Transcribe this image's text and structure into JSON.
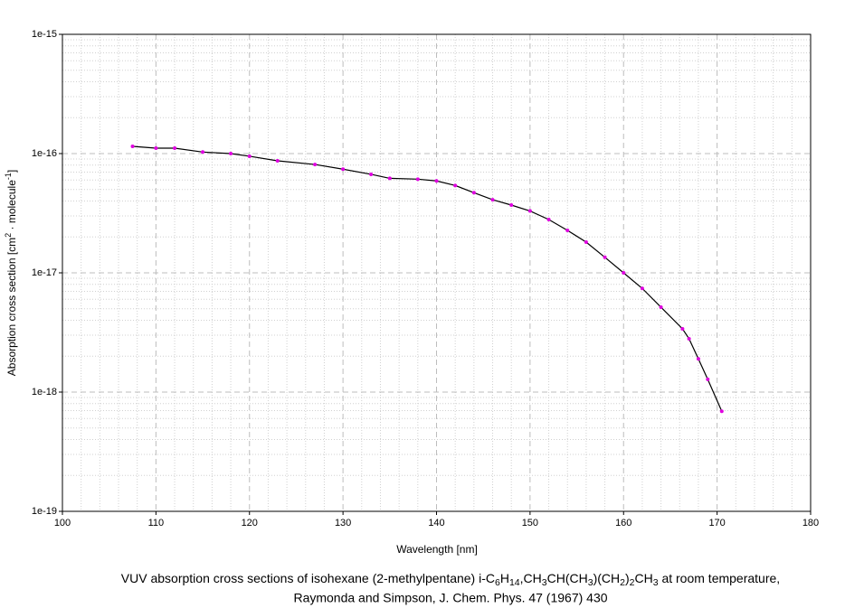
{
  "chart_data": {
    "type": "line",
    "caption": [
      "VUV absorption cross sections of isohexane (2-methylpentane) i-C6H14,CH3CH(CH3)(CH2)2CH3 at room temperature,",
      "Raymonda and Simpson, J. Chem. Phys. 47 (1967) 430"
    ],
    "xlabel": "Wavelength [nm]",
    "ylabel": "Absorption cross section [cm2 · molecule-1]",
    "x": [
      107.5,
      110,
      112,
      115,
      118,
      120,
      123,
      127,
      130,
      133,
      135,
      138,
      140,
      142,
      144,
      146,
      148,
      150,
      152,
      154,
      156,
      158,
      160,
      162,
      164,
      166.3,
      167,
      168,
      169,
      170.5
    ],
    "series": [
      {
        "color": "#e000e0",
        "line_color": "#000000",
        "values": [
          1.15e-16,
          1.11e-16,
          1.11e-16,
          1.03e-16,
          1e-16,
          9.5e-17,
          8.7e-17,
          8.1e-17,
          7.4e-17,
          6.7e-17,
          6.2e-17,
          6.1e-17,
          5.9e-17,
          5.4e-17,
          4.7e-17,
          4.1e-17,
          3.7e-17,
          3.3e-17,
          2.8e-17,
          2.27e-17,
          1.81e-17,
          1.35e-17,
          1e-17,
          7.4e-18,
          5.15e-18,
          3.39e-18,
          2.8e-18,
          1.9e-18,
          1.28e-18,
          6.9e-19
        ]
      }
    ],
    "xlim": [
      100,
      180
    ],
    "xticks": [
      100,
      110,
      120,
      130,
      140,
      150,
      160,
      170,
      180
    ],
    "ylim": [
      1e-19,
      1e-15
    ],
    "yscale": "log",
    "yticks": [
      {
        "value": 1e-19,
        "label": "1e-19"
      },
      {
        "value": 1e-18,
        "label": "1e-18"
      },
      {
        "value": 1e-17,
        "label": "1e-17"
      },
      {
        "value": 1e-16,
        "label": "1e-16"
      },
      {
        "value": 1e-15,
        "label": "1e-15"
      }
    ],
    "grid": true
  }
}
